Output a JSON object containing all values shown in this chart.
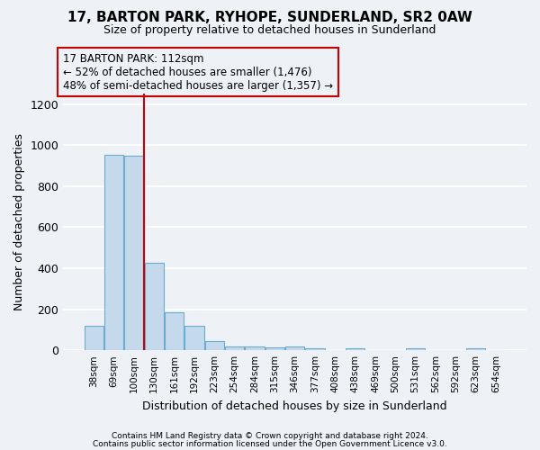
{
  "title1": "17, BARTON PARK, RYHOPE, SUNDERLAND, SR2 0AW",
  "title2": "Size of property relative to detached houses in Sunderland",
  "xlabel": "Distribution of detached houses by size in Sunderland",
  "ylabel": "Number of detached properties",
  "categories": [
    "38sqm",
    "69sqm",
    "100sqm",
    "130sqm",
    "161sqm",
    "192sqm",
    "223sqm",
    "254sqm",
    "284sqm",
    "315sqm",
    "346sqm",
    "377sqm",
    "408sqm",
    "438sqm",
    "469sqm",
    "500sqm",
    "531sqm",
    "562sqm",
    "592sqm",
    "623sqm",
    "654sqm"
  ],
  "values": [
    120,
    955,
    948,
    428,
    183,
    120,
    45,
    20,
    18,
    15,
    18,
    10,
    0,
    8,
    0,
    0,
    8,
    0,
    0,
    8,
    0
  ],
  "bar_color": "#c5d9ed",
  "bar_edge_color": "#6aabd2",
  "property_line_color": "#cc0000",
  "annotation_title": "17 BARTON PARK: 112sqm",
  "annotation_line1": "← 52% of detached houses are smaller (1,476)",
  "annotation_line2": "48% of semi-detached houses are larger (1,357) →",
  "annotation_box_edge_color": "#cc0000",
  "ylim": [
    0,
    1250
  ],
  "yticks": [
    0,
    200,
    400,
    600,
    800,
    1000,
    1200
  ],
  "footer1": "Contains HM Land Registry data © Crown copyright and database right 2024.",
  "footer2": "Contains public sector information licensed under the Open Government Licence v3.0.",
  "bg_color": "#eef2f7",
  "grid_color": "#ffffff"
}
